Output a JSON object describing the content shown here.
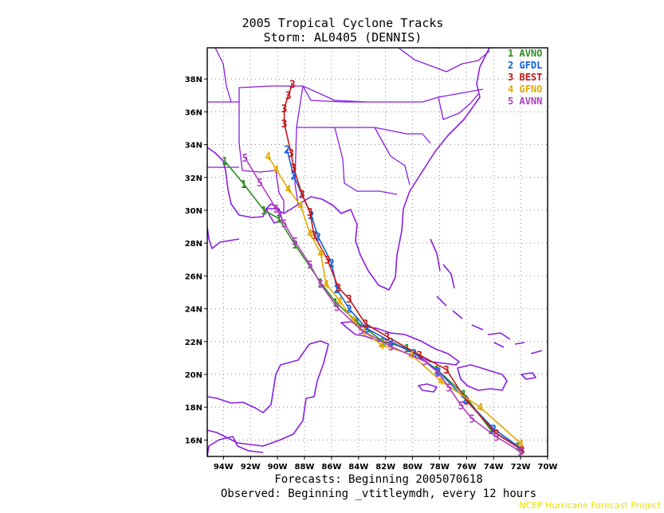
{
  "title": "2005 Tropical Cyclone Tracks",
  "subtitle": "Storm: AL0405 (DENNIS)",
  "footer_line1": "Forecasts: Beginning 2005070618",
  "footer_line2": "Observed: Beginning _vtitleymdh, every 12 hours",
  "credit": "NCEP Hurricane Forecast Project",
  "chart_data": {
    "type": "line",
    "title": "2005 Tropical Cyclone Tracks",
    "subtitle": "Storm: AL0405 (DENNIS)",
    "xlabel": "",
    "ylabel": "",
    "xlim": [
      -95.2,
      -70
    ],
    "ylim": [
      15,
      39.9
    ],
    "x_ticks": [
      {
        "value": -94,
        "label": "94W"
      },
      {
        "value": -92,
        "label": "92W"
      },
      {
        "value": -90,
        "label": "90W"
      },
      {
        "value": -88,
        "label": "88W"
      },
      {
        "value": -86,
        "label": "86W"
      },
      {
        "value": -84,
        "label": "84W"
      },
      {
        "value": -82,
        "label": "82W"
      },
      {
        "value": -80,
        "label": "80W"
      },
      {
        "value": -78,
        "label": "78W"
      },
      {
        "value": -76,
        "label": "76W"
      },
      {
        "value": -74,
        "label": "74W"
      },
      {
        "value": -72,
        "label": "72W"
      },
      {
        "value": -70,
        "label": "70W"
      }
    ],
    "y_ticks": [
      {
        "value": 16,
        "label": "16N"
      },
      {
        "value": 18,
        "label": "18N"
      },
      {
        "value": 20,
        "label": "20N"
      },
      {
        "value": 22,
        "label": "22N"
      },
      {
        "value": 24,
        "label": "24N"
      },
      {
        "value": 26,
        "label": "26N"
      },
      {
        "value": 28,
        "label": "28N"
      },
      {
        "value": 30,
        "label": "30N"
      },
      {
        "value": 32,
        "label": "32N"
      },
      {
        "value": 34,
        "label": "34N"
      },
      {
        "value": 36,
        "label": "36N"
      },
      {
        "value": 38,
        "label": "38N"
      }
    ],
    "grid": true,
    "legend_position": "top-right",
    "series": [
      {
        "name": "AVNO",
        "number": "1",
        "color": "#2e8b22",
        "points": [
          [
            -72.2,
            15.6
          ],
          [
            -74.2,
            16.6
          ],
          [
            -76.2,
            18.8
          ],
          [
            -78.2,
            20.3
          ],
          [
            -80.4,
            21.6
          ],
          [
            -82.2,
            22.0
          ],
          [
            -84.1,
            23.2
          ],
          [
            -85.7,
            24.4
          ],
          [
            -86.8,
            25.6
          ],
          [
            -88.7,
            27.9
          ],
          [
            -89.9,
            29.5
          ],
          [
            -91.0,
            30.0
          ],
          [
            -92.5,
            31.6
          ],
          [
            -93.9,
            33.0
          ]
        ]
      },
      {
        "name": "GFDL",
        "number": "2",
        "color": "#1060e0",
        "points": [
          [
            -72.0,
            15.5
          ],
          [
            -74.0,
            16.7
          ],
          [
            -76.1,
            18.5
          ],
          [
            -78.1,
            20.2
          ],
          [
            -79.9,
            21.3
          ],
          [
            -81.6,
            22.0
          ],
          [
            -83.4,
            22.8
          ],
          [
            -84.7,
            24.0
          ],
          [
            -85.6,
            25.2
          ],
          [
            -86.0,
            26.8
          ],
          [
            -87.0,
            28.4
          ],
          [
            -87.5,
            29.7
          ],
          [
            -88.2,
            31.0
          ],
          [
            -88.8,
            32.1
          ],
          [
            -89.3,
            33.7
          ]
        ]
      },
      {
        "name": "BEST",
        "number": "3",
        "color": "#c01818",
        "points": [
          [
            -71.9,
            15.4
          ],
          [
            -73.8,
            16.4
          ],
          [
            -76.0,
            18.4
          ],
          [
            -77.5,
            20.3
          ],
          [
            -79.5,
            21.2
          ],
          [
            -81.9,
            22.3
          ],
          [
            -83.5,
            23.1
          ],
          [
            -84.7,
            24.6
          ],
          [
            -85.5,
            25.3
          ],
          [
            -86.3,
            27.0
          ],
          [
            -87.3,
            28.5
          ],
          [
            -87.6,
            29.9
          ],
          [
            -88.2,
            31.0
          ],
          [
            -88.8,
            32.6
          ],
          [
            -89.0,
            33.5
          ],
          [
            -89.5,
            35.3
          ],
          [
            -89.5,
            36.2
          ],
          [
            -89.2,
            37.0
          ],
          [
            -88.9,
            37.7
          ]
        ]
      },
      {
        "name": "GFNO",
        "number": "4",
        "color": "#e0a800",
        "points": [
          [
            -72.0,
            15.8
          ],
          [
            -75.0,
            18.0
          ],
          [
            -77.9,
            19.6
          ],
          [
            -80.1,
            21.2
          ],
          [
            -82.3,
            21.8
          ],
          [
            -83.6,
            22.6
          ],
          [
            -84.4,
            23.3
          ],
          [
            -85.4,
            24.5
          ],
          [
            -86.4,
            25.5
          ],
          [
            -86.8,
            27.4
          ],
          [
            -87.6,
            28.6
          ],
          [
            -88.3,
            30.3
          ],
          [
            -89.2,
            31.3
          ],
          [
            -90.1,
            32.5
          ],
          [
            -90.7,
            33.3
          ]
        ]
      },
      {
        "name": "AVNN",
        "number": "5",
        "color": "#b040c0",
        "points": [
          [
            -72.0,
            15.3
          ],
          [
            -73.8,
            16.2
          ],
          [
            -75.6,
            17.3
          ],
          [
            -76.4,
            18.1
          ],
          [
            -77.3,
            19.2
          ],
          [
            -78.1,
            20.1
          ],
          [
            -79.1,
            20.8
          ],
          [
            -81.6,
            21.7
          ],
          [
            -83.8,
            22.7
          ],
          [
            -85.6,
            24.1
          ],
          [
            -86.8,
            25.5
          ],
          [
            -87.6,
            26.7
          ],
          [
            -88.7,
            28.1
          ],
          [
            -89.5,
            29.2
          ],
          [
            -90.1,
            30.1
          ],
          [
            -91.3,
            31.7
          ],
          [
            -92.4,
            33.2
          ]
        ]
      }
    ]
  }
}
